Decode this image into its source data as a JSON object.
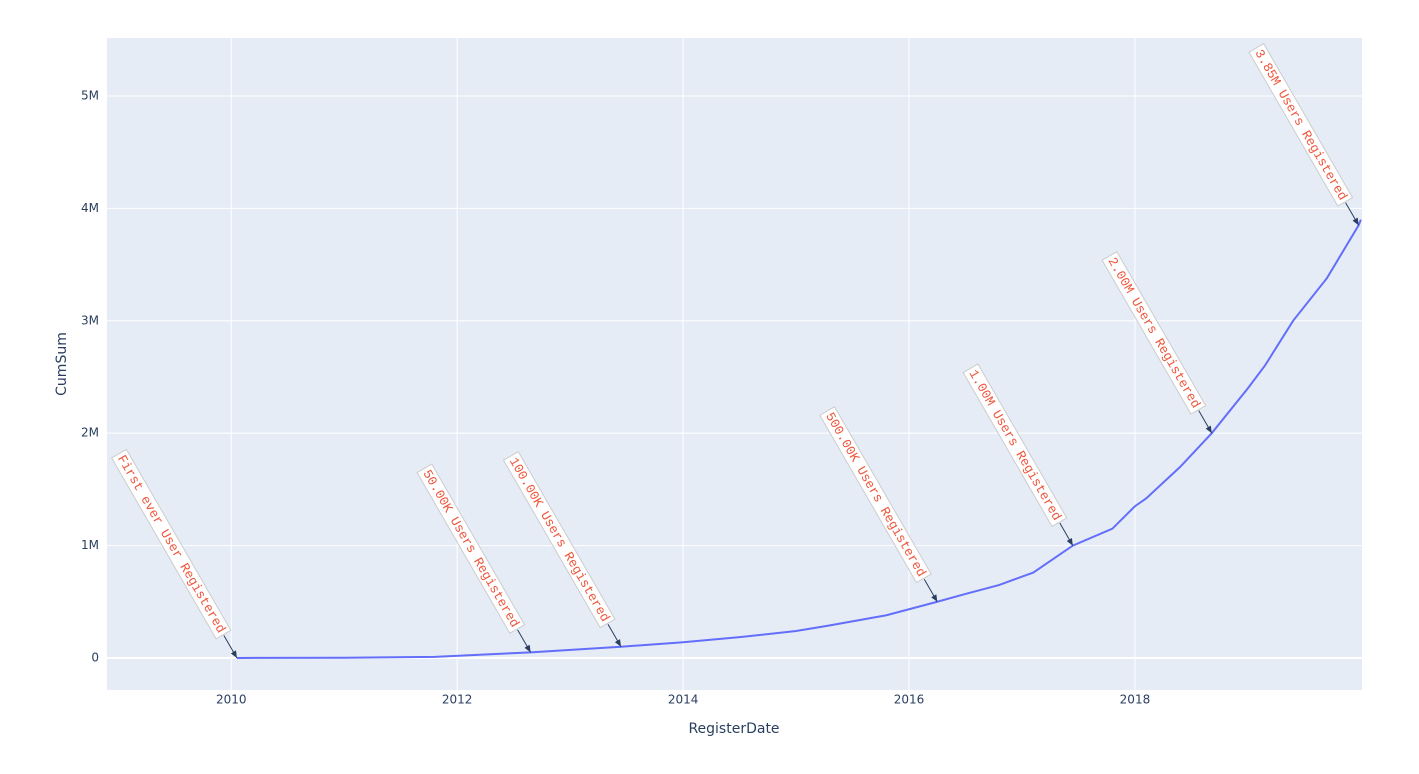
{
  "chart_data": {
    "type": "line",
    "x_label": "RegisterDate",
    "y_label": "CumSum",
    "x": [
      2010.05,
      2011.0,
      2011.8,
      2012.65,
      2013.45,
      2014.0,
      2014.5,
      2015.0,
      2015.3,
      2015.8,
      2016.25,
      2016.5,
      2016.8,
      2017.1,
      2017.45,
      2017.8,
      2018.0,
      2018.1,
      2018.4,
      2018.68,
      2019.0,
      2019.15,
      2019.4,
      2019.7,
      2019.98,
      2020.0
    ],
    "series": [
      {
        "name": "CumSum",
        "color": "#636efa",
        "values": [
          0,
          2000,
          10000,
          50000,
          100000,
          140000,
          185000,
          240000,
          290000,
          380000,
          500000,
          570000,
          650000,
          760000,
          1000000,
          1150000,
          1350000,
          1420000,
          1700000,
          2000000,
          2400000,
          2600000,
          3000000,
          3380000,
          3850000,
          3900000
        ]
      }
    ],
    "xlim": [
      2008.9,
      2020.01
    ],
    "xticks": [
      2010,
      2012,
      2014,
      2016,
      2018
    ],
    "ylim": [
      -285000,
      5516000
    ],
    "yticks": [
      0,
      {
        "value": 1000000,
        "label": "1M"
      },
      {
        "value": 2000000,
        "label": "2M"
      },
      {
        "value": 3000000,
        "label": "3M"
      },
      {
        "value": 4000000,
        "label": "4M"
      },
      {
        "value": 5000000,
        "label": "5M"
      }
    ],
    "grid": true,
    "annotation_color": "#ef553b",
    "annotations": [
      {
        "text": "First ever User Registered",
        "x": 2010.05,
        "y": 0
      },
      {
        "text": "50.00K Users Registered",
        "x": 2012.65,
        "y": 50000
      },
      {
        "text": "100.00K Users Registered",
        "x": 2013.45,
        "y": 100000
      },
      {
        "text": "500.00K Users Registered",
        "x": 2016.25,
        "y": 500000
      },
      {
        "text": "1.00M Users Registered",
        "x": 2017.45,
        "y": 1000000
      },
      {
        "text": "2.00M Users Registered",
        "x": 2018.68,
        "y": 2000000
      },
      {
        "text": "3.85M Users Registered",
        "x": 2019.98,
        "y": 3850000
      }
    ]
  }
}
